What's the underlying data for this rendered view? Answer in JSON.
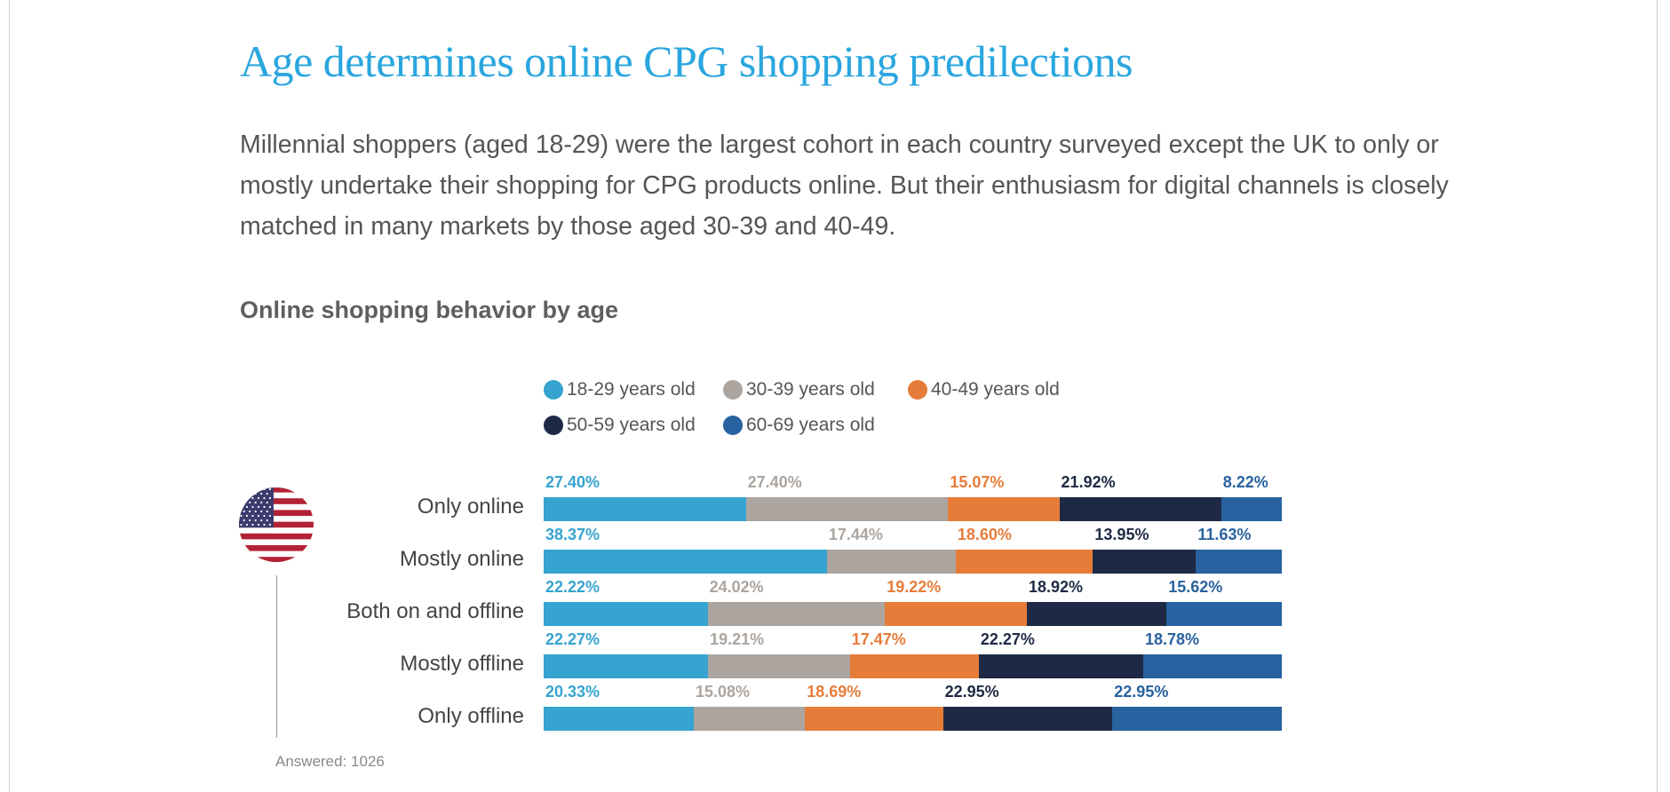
{
  "header": {
    "title": "Age determines online CPG shopping predilections",
    "intro": "Millennial shoppers (aged 18-29) were the largest cohort in each country surveyed except the UK to only or mostly undertake their shopping for CPG products online. But their enthusiasm for digital channels is closely matched in many markets by those aged 30-39 and 40-49."
  },
  "chart_data": {
    "type": "bar",
    "stacked": true,
    "orientation": "horizontal",
    "title": "Online shopping behavior by age",
    "flag_icon": "us-flag-icon",
    "categories": [
      "Only online",
      "Mostly online",
      "Both on and offline",
      "Mostly offline",
      "Only offline"
    ],
    "series": [
      {
        "name": "18-29 years old",
        "color": "#36a3d0",
        "values": [
          27.4,
          38.37,
          22.22,
          22.27,
          20.33
        ],
        "labels": [
          "27.40%",
          "38.37%",
          "22.22%",
          "22.27%",
          "20.33%"
        ]
      },
      {
        "name": "30-39 years old",
        "color": "#aca59f",
        "values": [
          27.4,
          17.44,
          24.02,
          19.21,
          15.08
        ],
        "labels": [
          "27.40%",
          "17.44%",
          "24.02%",
          "19.21%",
          "15.08%"
        ]
      },
      {
        "name": "40-49 years old",
        "color": "#e67c39",
        "values": [
          15.07,
          18.6,
          19.22,
          17.47,
          18.69
        ],
        "labels": [
          "15.07%",
          "18.60%",
          "19.22%",
          "17.47%",
          "18.69%"
        ]
      },
      {
        "name": "50-59 years old",
        "color": "#1e2a45",
        "values": [
          21.92,
          13.95,
          18.92,
          22.27,
          22.95
        ],
        "labels": [
          "21.92%",
          "13.95%",
          "18.92%",
          "22.27%",
          "22.95%"
        ]
      },
      {
        "name": "60-69 years old",
        "color": "#2862a0",
        "values": [
          8.22,
          11.63,
          15.62,
          18.78,
          22.95
        ],
        "labels": [
          "8.22%",
          "11.63%",
          "15.62%",
          "18.78%",
          "22.95%"
        ]
      }
    ],
    "legend_position": "top",
    "footnote": "Answered: 1026"
  }
}
